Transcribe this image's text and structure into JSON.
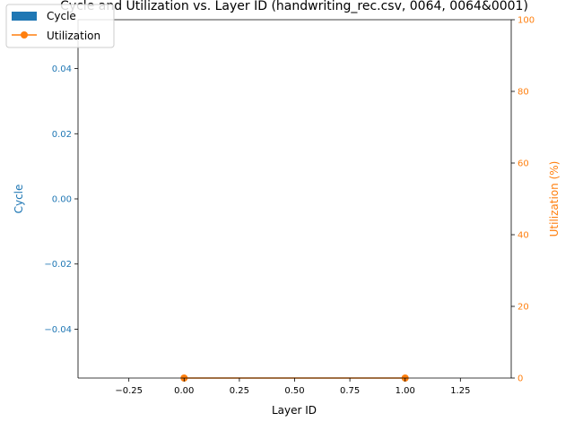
{
  "chart_data": {
    "type": "bar",
    "title": "Cycle and Utilization vs. Layer ID (handwriting_rec.csv, 0064, 0064&0001)",
    "xlabel": "Layer ID",
    "ylabel": "Cycle",
    "y2label": "Utilization (%)",
    "xlim": [
      -0.48,
      1.48
    ],
    "ylim": [
      -0.055,
      0.055
    ],
    "y2lim": [
      0,
      100
    ],
    "x_ticks": [
      -0.25,
      0.0,
      0.25,
      0.5,
      0.75,
      1.0,
      1.25
    ],
    "x_tick_labels": [
      "−0.25",
      "0.00",
      "0.25",
      "0.50",
      "0.75",
      "1.00",
      "1.25"
    ],
    "y_ticks": [
      -0.04,
      -0.02,
      0.0,
      0.02,
      0.04
    ],
    "y_tick_labels": [
      "−0.04",
      "−0.02",
      "0.00",
      "0.02",
      "0.04"
    ],
    "y2_ticks": [
      0,
      20,
      40,
      60,
      80,
      100
    ],
    "y2_tick_labels": [
      "0",
      "20",
      "40",
      "60",
      "80",
      "100"
    ],
    "legend_position": "top-left",
    "grid": false,
    "series": [
      {
        "name": "Cycle",
        "kind": "bar",
        "axis": "left",
        "color": "#1f77b4",
        "x": [],
        "values": []
      },
      {
        "name": "Utilization",
        "kind": "line",
        "axis": "right",
        "color": "#ff7f0e",
        "marker": "circle",
        "x": [
          0,
          1
        ],
        "values": [
          0,
          0
        ]
      }
    ]
  }
}
